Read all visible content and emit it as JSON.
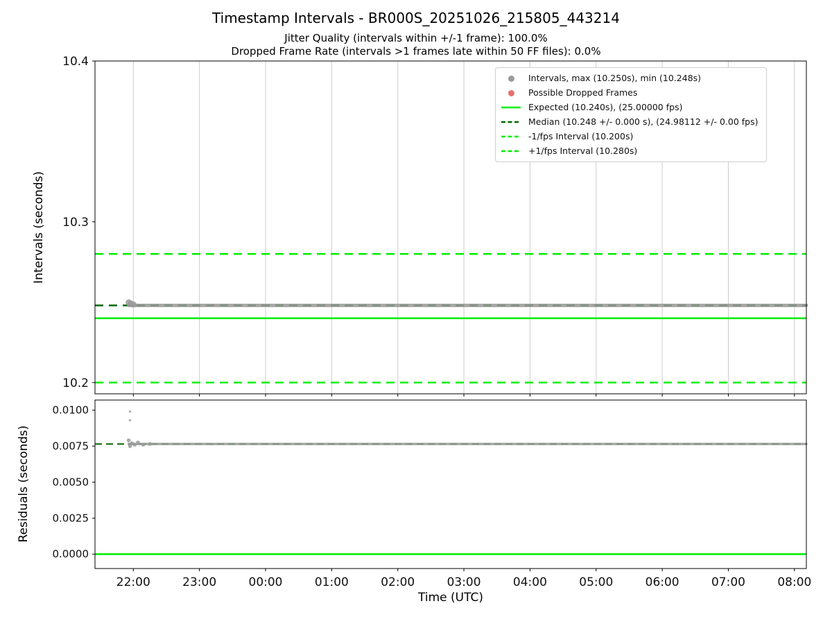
{
  "figure": {
    "title": "Timestamp Intervals - BR000S_20251026_215805_443214",
    "subtitle1": "Jitter Quality (intervals within +/-1 frame): 100.0%",
    "subtitle2": "Dropped Frame Rate (intervals >1 frames late within 50 FF files): 0.0%",
    "xlabel": "Time (UTC)"
  },
  "colors": {
    "bright_green": "#00ee00",
    "dark_green": "#006400",
    "gray_marker": "#9a9a9a",
    "red_marker": "#e8706a",
    "grid": "#cccccc",
    "spine": "#000000"
  },
  "legend": {
    "entries": [
      {
        "marker": "dot",
        "color": "gray_marker",
        "label": "Intervals, max (10.250s), min (10.248s)"
      },
      {
        "marker": "dot",
        "color": "red_marker",
        "label": "Possible Dropped Frames"
      },
      {
        "marker": "line-solid",
        "color": "bright_green",
        "label": "Expected (10.240s), (25.00000 fps)"
      },
      {
        "marker": "line-dashed",
        "color": "dark_green",
        "label": "Median (10.248 +/- 0.000 s), (24.98112 +/- 0.00 fps)"
      },
      {
        "marker": "line-dashed",
        "color": "bright_green",
        "label": "-1/fps Interval (10.200s)"
      },
      {
        "marker": "line-dashed",
        "color": "bright_green",
        "label": "+1/fps Interval (10.280s)"
      }
    ]
  },
  "chart_data": [
    {
      "id": "intervals",
      "type": "scatter",
      "ylabel": "Intervals (seconds)",
      "ylim": [
        10.193,
        10.4
      ],
      "yticks": [
        {
          "v": 10.2,
          "label": "10.2"
        },
        {
          "v": 10.3,
          "label": "10.3"
        },
        {
          "v": 10.4,
          "label": "10.4"
        }
      ],
      "xlim": [
        21.42,
        32.18
      ],
      "xticks": [
        {
          "v": 22,
          "label": "22:00"
        },
        {
          "v": 23,
          "label": "23:00"
        },
        {
          "v": 24,
          "label": "00:00"
        },
        {
          "v": 25,
          "label": "01:00"
        },
        {
          "v": 26,
          "label": "02:00"
        },
        {
          "v": 27,
          "label": "03:00"
        },
        {
          "v": 28,
          "label": "04:00"
        },
        {
          "v": 29,
          "label": "05:00"
        },
        {
          "v": 30,
          "label": "06:00"
        },
        {
          "v": 31,
          "label": "07:00"
        },
        {
          "v": 32,
          "label": "08:00"
        }
      ],
      "grid_x": true,
      "hlines": [
        {
          "y": 10.2,
          "dash": true,
          "color": "bright_green",
          "width": 2.5,
          "name": "minus-1fps-line"
        },
        {
          "y": 10.28,
          "dash": true,
          "color": "bright_green",
          "width": 2.5,
          "name": "plus-1fps-line"
        },
        {
          "y": 10.24,
          "dash": false,
          "color": "bright_green",
          "width": 2.5,
          "name": "expected-line"
        },
        {
          "y": 10.248,
          "dash": true,
          "color": "dark_green",
          "width": 2.5,
          "name": "median-line"
        }
      ],
      "series": [
        {
          "name": "intervals-scatter-band",
          "kind": "band",
          "y": 10.248,
          "x_start": 21.93,
          "x_end": 32.18,
          "color": "gray_marker",
          "width": 5
        },
        {
          "name": "intervals-start-cluster",
          "kind": "points",
          "color": "gray_marker",
          "r": 4.5,
          "points": [
            [
              21.93,
              10.2498
            ],
            [
              21.96,
              10.2492
            ],
            [
              22.0,
              10.2486
            ]
          ]
        }
      ]
    },
    {
      "id": "residuals",
      "type": "scatter",
      "ylabel": "Residuals (seconds)",
      "ylim": [
        -0.001,
        0.0107
      ],
      "yticks": [
        {
          "v": 0.0,
          "label": "0.0000"
        },
        {
          "v": 0.0025,
          "label": "0.0025"
        },
        {
          "v": 0.005,
          "label": "0.0050"
        },
        {
          "v": 0.0075,
          "label": "0.0075"
        },
        {
          "v": 0.01,
          "label": "0.0100"
        }
      ],
      "xlim": [
        21.42,
        32.18
      ],
      "xticks": [
        {
          "v": 22,
          "label": "22:00"
        },
        {
          "v": 23,
          "label": "23:00"
        },
        {
          "v": 24,
          "label": "00:00"
        },
        {
          "v": 25,
          "label": "01:00"
        },
        {
          "v": 26,
          "label": "02:00"
        },
        {
          "v": 27,
          "label": "03:00"
        },
        {
          "v": 28,
          "label": "04:00"
        },
        {
          "v": 29,
          "label": "05:00"
        },
        {
          "v": 30,
          "label": "06:00"
        },
        {
          "v": 31,
          "label": "07:00"
        },
        {
          "v": 32,
          "label": "08:00"
        }
      ],
      "grid_x": false,
      "hlines": [
        {
          "y": 0.0,
          "dash": false,
          "color": "bright_green",
          "width": 2.5,
          "name": "residual-zero-line"
        },
        {
          "y": 0.00765,
          "dash": true,
          "color": "dark_green",
          "width": 2,
          "name": "residual-median-line"
        }
      ],
      "series": [
        {
          "name": "residuals-scatter-band",
          "kind": "band",
          "y": 0.00765,
          "x_start": 21.93,
          "x_end": 32.18,
          "color": "gray_marker",
          "width": 3.5
        },
        {
          "name": "residuals-start-cluster",
          "kind": "points",
          "color": "gray_marker",
          "r": 2.8,
          "points": [
            [
              21.93,
              0.0079
            ],
            [
              21.95,
              0.0075
            ],
            [
              21.98,
              0.0077
            ],
            [
              22.02,
              0.0076
            ],
            [
              22.07,
              0.00775
            ],
            [
              22.15,
              0.0076
            ],
            [
              22.25,
              0.00765
            ]
          ]
        },
        {
          "name": "residuals-outliers",
          "kind": "points",
          "color": "gray_marker",
          "r": 1.6,
          "points": [
            [
              21.95,
              0.0099
            ],
            [
              21.95,
              0.0093
            ]
          ]
        },
        {
          "name": "residuals-sparse-dots",
          "kind": "points",
          "color": "gray_marker",
          "r": 1.3,
          "points": [
            [
              23.2,
              0.00762
            ],
            [
              24.5,
              0.00768
            ],
            [
              26.0,
              0.00763
            ],
            [
              27.3,
              0.00767
            ],
            [
              28.8,
              0.00762
            ],
            [
              30.2,
              0.00766
            ],
            [
              31.5,
              0.00763
            ]
          ]
        }
      ]
    }
  ]
}
